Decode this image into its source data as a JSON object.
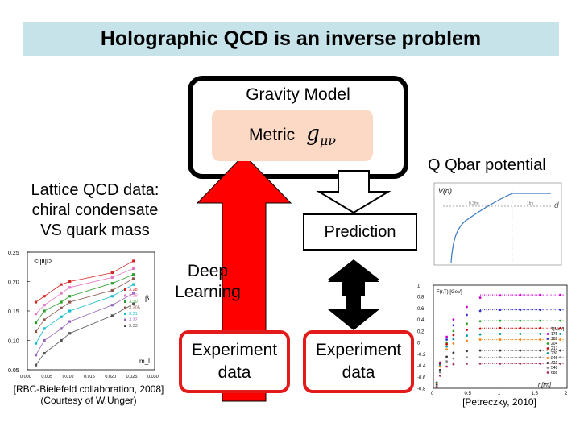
{
  "slide": {
    "title": "Holographic QCD is an inverse problem",
    "gravity_model": "Gravity Model",
    "metric_label": "Metric",
    "metric_symbol": "g",
    "metric_subscript": "μν",
    "lattice_label_lines": [
      "Lattice QCD data:",
      "chiral condensate",
      "VS quark mass"
    ],
    "qqbar_label": "Q Qbar potential",
    "prediction_label": "Prediction",
    "deep_learning_lines": [
      "Deep",
      "Learning"
    ],
    "experiment_left_lines": [
      "Experiment",
      "data"
    ],
    "experiment_right_lines": [
      "Experiment",
      "data"
    ],
    "citation_left_lines": [
      "[RBC-Bielefeld collaboration, 2008]",
      "(Courtesy of W.Unger)"
    ],
    "citation_right": "[Petreczky, 2010]",
    "colors": {
      "title_bg": "#c6e3ea",
      "metric_bg": "#fbd9c4",
      "arrow_red": "#ff0000",
      "box_red": "#e31a1a"
    }
  },
  "left_plot": {
    "y_label": "<ψψ>",
    "x_label": "m_l",
    "y_ticks": [
      "0.25",
      "0.20",
      "0.15",
      "0.10",
      "0.05"
    ],
    "x_ticks": [
      "0.000",
      "0.005",
      "0.010",
      "0.015",
      "0.020",
      "0.025",
      "0.030"
    ],
    "beta_symbol": "β",
    "legend": [
      "3.28",
      "3.29",
      "3.30",
      "3.305",
      "3.31",
      "3.32",
      "3.33"
    ]
  },
  "qq_plot": {
    "title": "V(d)",
    "axis_label": "d",
    "tick_top": [
      "0.3fm",
      "1fm"
    ]
  },
  "right_plot": {
    "title": "F(r,T) [GeV]",
    "x_label": "r [fm]",
    "y_ticks": [
      "1",
      "0.8",
      "0.6",
      "0.4",
      "0.2",
      "0",
      "-0.2",
      "-0.4",
      "-0.6",
      "-0.8"
    ],
    "x_ticks": [
      "0",
      "0.5",
      "1",
      "1.5",
      "2"
    ],
    "legend_header": "T[MeV]",
    "legend": [
      "175",
      "189",
      "204",
      "217",
      "230",
      "248",
      "421",
      "548",
      "688"
    ]
  },
  "chart_data": [
    {
      "type": "line",
      "title": "",
      "xlabel": "m_l",
      "ylabel": "<ψψ>",
      "xlim": [
        0.0,
        0.03
      ],
      "ylim": [
        0.05,
        0.25
      ],
      "x": [
        0.002,
        0.004,
        0.008,
        0.01,
        0.02,
        0.025
      ],
      "series": [
        {
          "name": "3.28",
          "values": [
            0.165,
            0.175,
            0.195,
            0.2,
            0.215,
            0.235
          ]
        },
        {
          "name": "3.29",
          "values": [
            0.145,
            0.16,
            0.18,
            0.19,
            0.207,
            0.222
          ]
        },
        {
          "name": "3.30",
          "values": [
            0.13,
            0.15,
            0.165,
            0.175,
            0.197,
            0.212
          ]
        },
        {
          "name": "3.305",
          "values": [
            0.115,
            0.135,
            0.155,
            0.165,
            0.185,
            0.205
          ]
        },
        {
          "name": "3.31",
          "values": [
            0.095,
            0.12,
            0.14,
            0.15,
            0.175,
            0.195
          ]
        },
        {
          "name": "3.32",
          "values": [
            0.075,
            0.1,
            0.12,
            0.132,
            0.16,
            0.18
          ]
        },
        {
          "name": "3.33",
          "values": [
            0.058,
            0.078,
            0.1,
            0.112,
            0.142,
            0.162
          ]
        }
      ]
    },
    {
      "type": "line",
      "title": "V(d)",
      "xlabel": "d",
      "ylabel": "",
      "x": [
        0.1,
        0.3,
        0.5,
        0.8,
        1.0,
        1.2,
        1.5,
        2.0,
        2.5
      ],
      "series": [
        {
          "name": "",
          "values": [
            -300,
            -120,
            -60,
            10,
            60,
            110,
            180,
            180,
            180
          ]
        }
      ]
    },
    {
      "type": "scatter",
      "title": "F(r,T) [GeV]",
      "xlabel": "r [fm]",
      "ylabel": "",
      "xlim": [
        0,
        2
      ],
      "ylim": [
        -0.8,
        1.0
      ],
      "x": [
        0.05,
        0.1,
        0.2,
        0.3,
        0.5,
        0.7,
        1.0,
        1.3,
        1.6,
        1.9
      ],
      "series": [
        {
          "name": "175",
          "values": [
            -0.7,
            -0.35,
            0.1,
            0.4,
            0.62,
            0.78,
            0.82,
            0.83,
            0.83,
            0.83
          ]
        },
        {
          "name": "189",
          "values": [
            -0.7,
            -0.36,
            0.05,
            0.3,
            0.48,
            0.55,
            0.57,
            0.57,
            0.57,
            0.57
          ]
        },
        {
          "name": "204",
          "values": [
            -0.7,
            -0.37,
            0.0,
            0.2,
            0.33,
            0.37,
            0.38,
            0.38,
            0.38,
            0.38
          ]
        },
        {
          "name": "217",
          "values": [
            -0.71,
            -0.38,
            -0.03,
            0.13,
            0.22,
            0.24,
            0.25,
            0.25,
            0.25,
            0.25
          ]
        },
        {
          "name": "230",
          "values": [
            -0.71,
            -0.4,
            -0.07,
            0.06,
            0.12,
            0.14,
            0.15,
            0.15,
            0.15,
            0.15
          ]
        },
        {
          "name": "248",
          "values": [
            -0.72,
            -0.42,
            -0.12,
            -0.02,
            0.03,
            0.05,
            0.05,
            0.05,
            0.05,
            0.05
          ]
        },
        {
          "name": "421",
          "values": [
            -0.74,
            -0.48,
            -0.25,
            -0.18,
            -0.15,
            -0.14,
            -0.14,
            -0.14,
            -0.14,
            -0.14
          ]
        },
        {
          "name": "548",
          "values": [
            -0.76,
            -0.52,
            -0.33,
            -0.28,
            -0.26,
            -0.26,
            -0.26,
            -0.26,
            -0.26,
            -0.26
          ]
        },
        {
          "name": "688",
          "values": [
            -0.78,
            -0.58,
            -0.42,
            -0.38,
            -0.37,
            -0.37,
            -0.37,
            -0.37,
            -0.37,
            -0.37
          ]
        }
      ]
    }
  ]
}
